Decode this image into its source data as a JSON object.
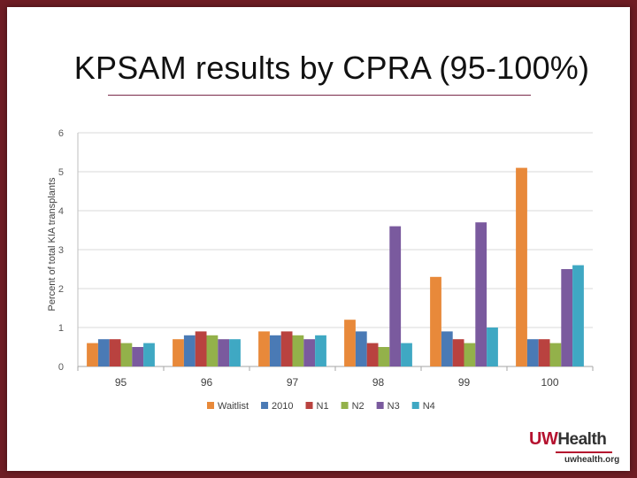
{
  "slide": {
    "title": "KPSAM results by CPRA (95-100%)"
  },
  "logo": {
    "brand_uw": "UW",
    "brand_health": "Health",
    "url": "uwhealth.org"
  },
  "chart_data": {
    "type": "bar",
    "title": "",
    "xlabel": "",
    "ylabel": "Percent of total KIA transplants",
    "ylim": [
      0,
      6
    ],
    "yticks": [
      "0",
      "1",
      "2",
      "3",
      "4",
      "5",
      "6"
    ],
    "grid": true,
    "legend_position": "bottom",
    "categories": [
      "95",
      "96",
      "97",
      "98",
      "99",
      "100"
    ],
    "series": [
      {
        "name": "Waitlist",
        "color": "#e8893a",
        "values": [
          0.6,
          0.7,
          0.9,
          1.2,
          2.3,
          5.1
        ]
      },
      {
        "name": "2010",
        "color": "#4a7ab5",
        "values": [
          0.7,
          0.8,
          0.8,
          0.9,
          0.9,
          0.7
        ]
      },
      {
        "name": "N1",
        "color": "#b9423f",
        "values": [
          0.7,
          0.9,
          0.9,
          0.6,
          0.7,
          0.7
        ]
      },
      {
        "name": "N2",
        "color": "#93b14a",
        "values": [
          0.6,
          0.8,
          0.8,
          0.5,
          0.6,
          0.6
        ]
      },
      {
        "name": "N3",
        "color": "#7a5a9e",
        "values": [
          0.5,
          0.7,
          0.7,
          3.6,
          3.7,
          2.5
        ]
      },
      {
        "name": "N4",
        "color": "#3fa8c3",
        "values": [
          0.6,
          0.7,
          0.8,
          0.6,
          1.0,
          2.6
        ]
      }
    ]
  }
}
